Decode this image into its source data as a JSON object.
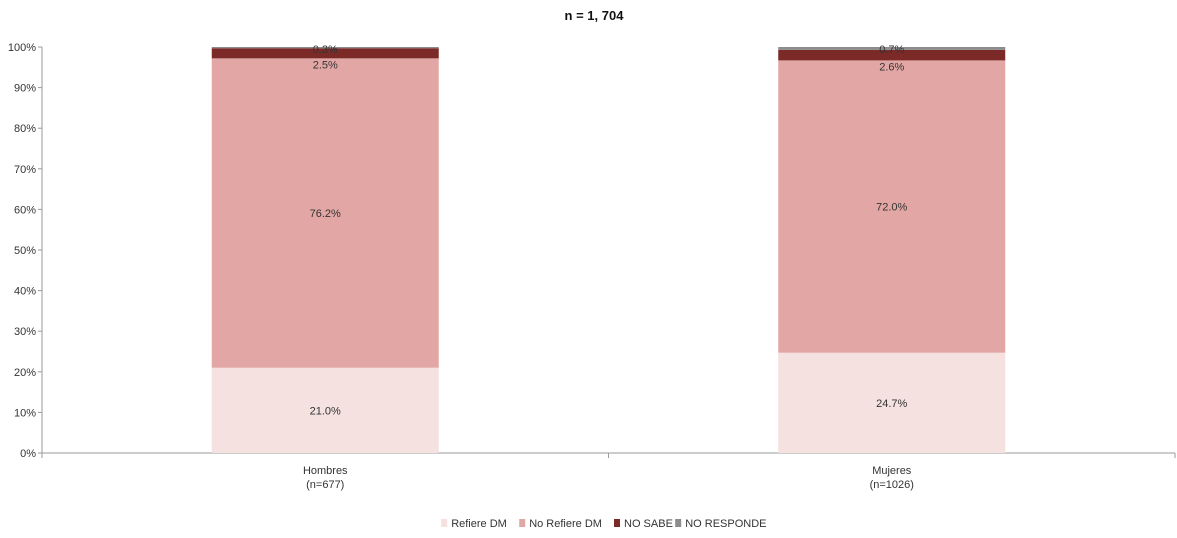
{
  "chart_data": {
    "type": "bar",
    "stacked": true,
    "title": "n = 1, 704",
    "categories": [
      "Hombres",
      "Mujeres"
    ],
    "category_subtitles": [
      "(n=677)",
      "(n=1026)"
    ],
    "ylim": [
      0,
      100
    ],
    "y_ticks": [
      "0%",
      "10%",
      "20%",
      "30%",
      "40%",
      "50%",
      "60%",
      "70%",
      "80%",
      "90%",
      "100%"
    ],
    "grid": false,
    "legend_position": "bottom",
    "series": [
      {
        "name": "Refiere DM",
        "values": [
          21.0,
          24.7
        ],
        "labels": [
          "21.0%",
          "24.7%"
        ],
        "color": "#f4e1e0"
      },
      {
        "name": "No Refiere DM",
        "values": [
          76.2,
          72.0
        ],
        "labels": [
          "76.2%",
          "72.0%"
        ],
        "color": "#e2a7a5"
      },
      {
        "name": "NO SABE",
        "values": [
          2.5,
          2.6
        ],
        "labels": [
          "2.5%",
          "2.6%"
        ],
        "color": "#7b2a28"
      },
      {
        "name": "NO RESPONDE",
        "values": [
          0.3,
          0.7
        ],
        "labels": [
          "0.3%",
          "0.7%"
        ],
        "color": "#8c8c8c"
      }
    ]
  }
}
